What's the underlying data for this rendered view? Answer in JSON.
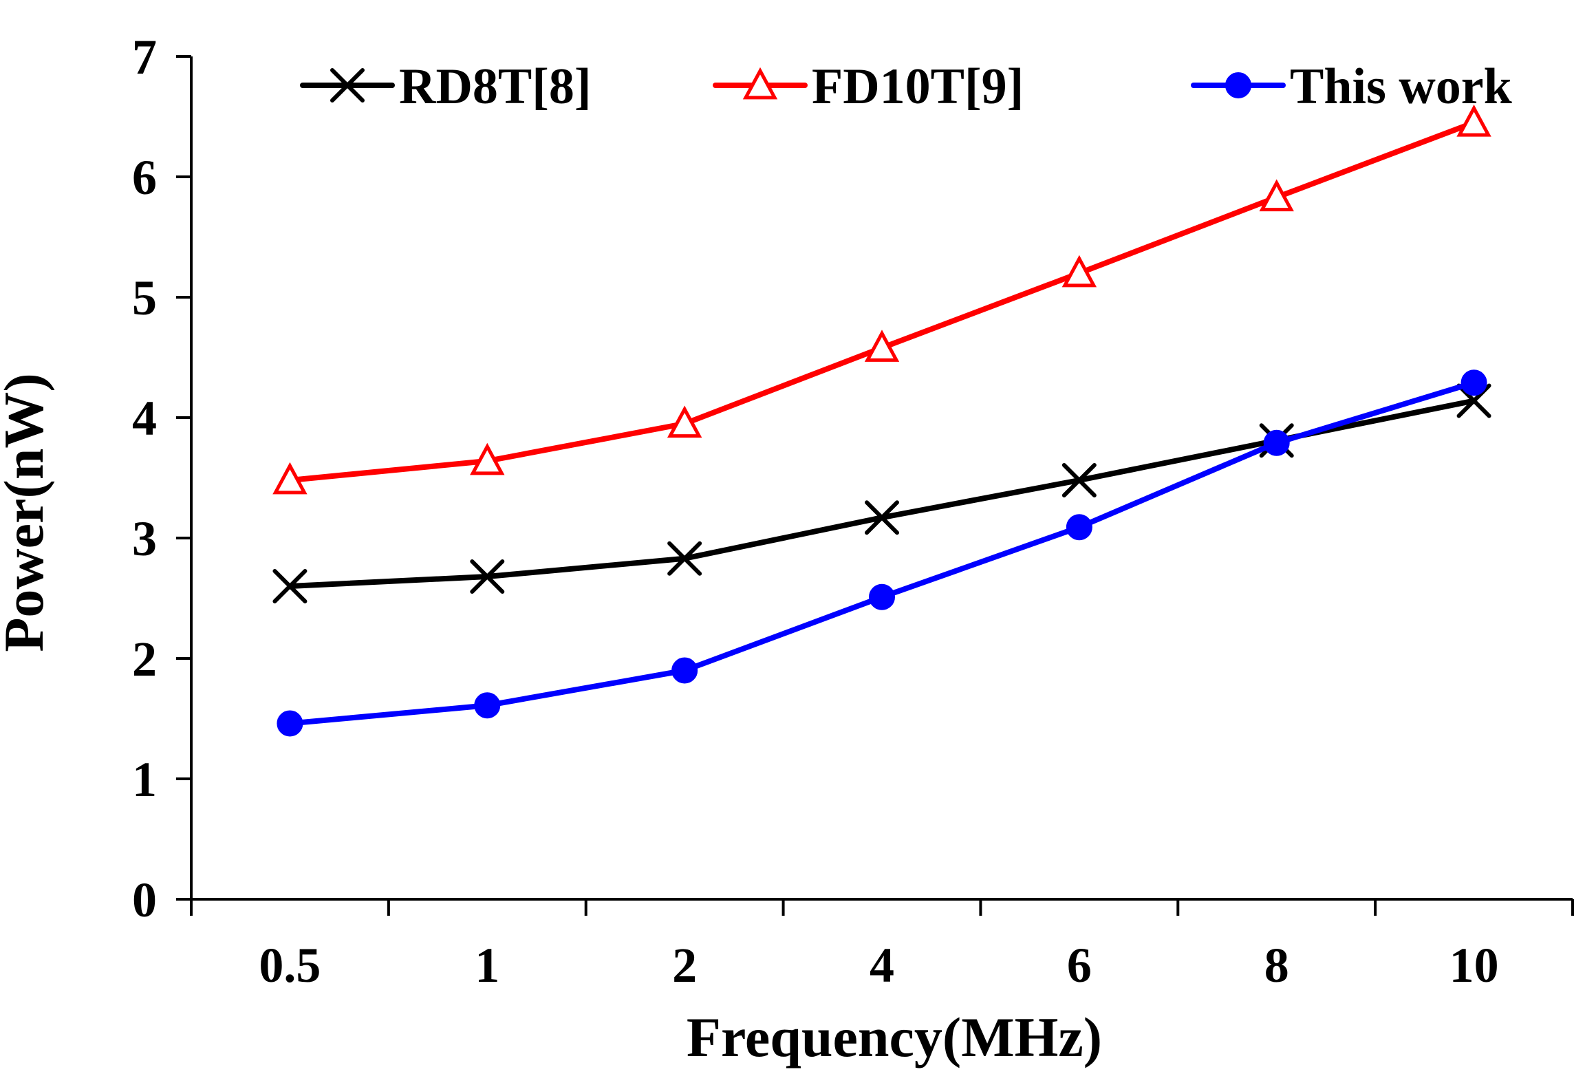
{
  "chart_data": {
    "type": "line",
    "title": "",
    "xlabel": "Frequency(MHz)",
    "ylabel": "Power(nW)",
    "categories": [
      "0.5",
      "1",
      "2",
      "4",
      "6",
      "8",
      "10"
    ],
    "ylim": [
      0,
      7
    ],
    "yticks": [
      0,
      1,
      2,
      3,
      4,
      5,
      6,
      7
    ],
    "grid": false,
    "legend_position": "top",
    "series": [
      {
        "name": "RD8T[8]",
        "color": "#000000",
        "marker": "x",
        "values": [
          2.6,
          2.68,
          2.83,
          3.17,
          3.48,
          3.81,
          4.14
        ]
      },
      {
        "name": "FD10T[9]",
        "color": "#ff0000",
        "marker": "triangle-open",
        "values": [
          3.48,
          3.64,
          3.95,
          4.58,
          5.2,
          5.83,
          6.45
        ]
      },
      {
        "name": "This work",
        "color": "#0000ff",
        "marker": "circle",
        "values": [
          1.46,
          1.61,
          1.9,
          2.51,
          3.09,
          3.79,
          4.29
        ]
      }
    ]
  }
}
